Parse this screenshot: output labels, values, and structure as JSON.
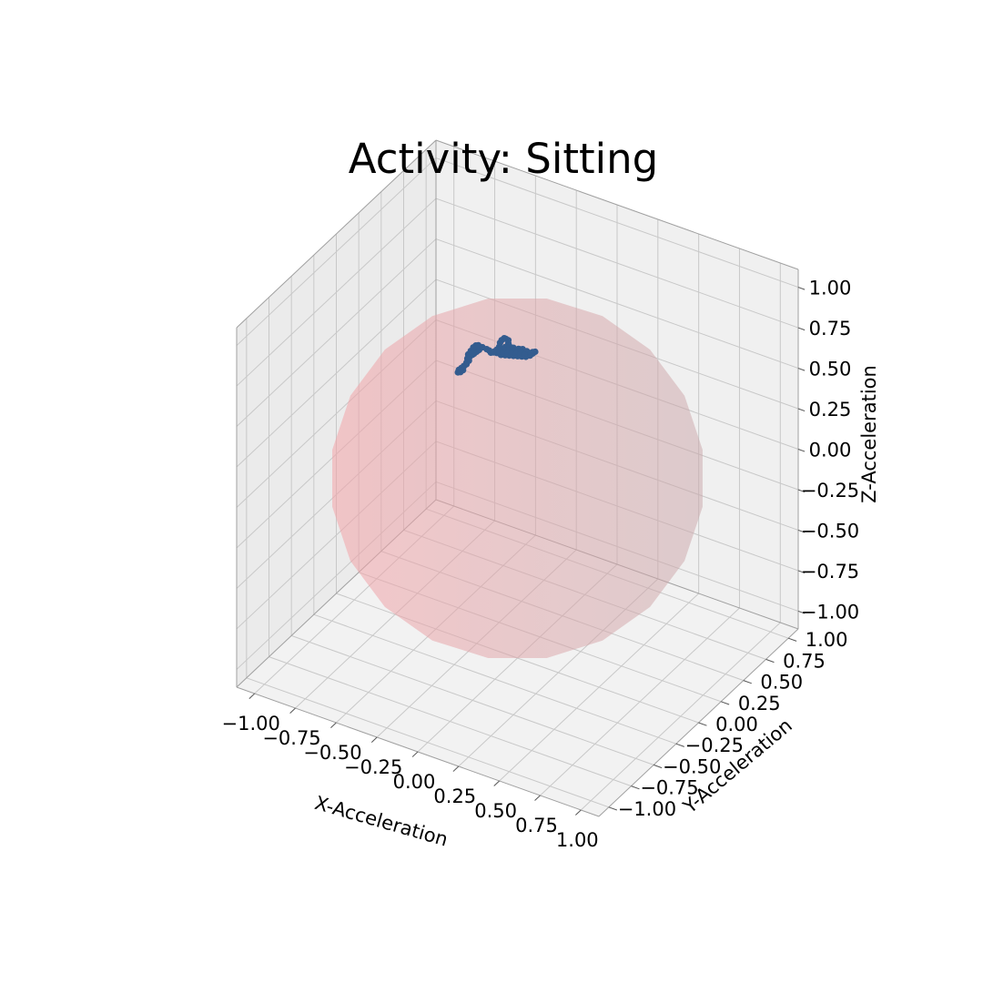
{
  "chart_data": {
    "type": "scatter",
    "title": "Activity: Sitting",
    "xlabel": "X-Acceleration",
    "ylabel": "Y-Acceleration",
    "zlabel": "Z-Acceleration",
    "xlim": [
      -1.0,
      1.0
    ],
    "ylim": [
      -1.0,
      1.0
    ],
    "zlim": [
      -1.0,
      1.0
    ],
    "ticks": [
      -1.0,
      -0.75,
      -0.5,
      -0.25,
      0.0,
      0.25,
      0.5,
      0.75,
      1.0
    ],
    "tick_labels": [
      "−1.00",
      "−0.75",
      "−0.50",
      "−0.25",
      "0.00",
      "0.25",
      "0.50",
      "0.75",
      "1.00"
    ],
    "grid": true,
    "reference_surface": {
      "shape": "unit sphere",
      "color": "#f4a3a8"
    },
    "series": [
      {
        "color": "#335c8f",
        "points": [
          [
            -0.18,
            -0.1,
            0.78
          ],
          [
            -0.19,
            -0.11,
            0.77
          ],
          [
            -0.2,
            -0.12,
            0.76
          ],
          [
            -0.21,
            -0.12,
            0.75
          ],
          [
            -0.22,
            -0.13,
            0.74
          ],
          [
            -0.22,
            -0.14,
            0.72
          ],
          [
            -0.23,
            -0.15,
            0.7
          ],
          [
            -0.24,
            -0.16,
            0.69
          ],
          [
            -0.25,
            -0.17,
            0.68
          ],
          [
            -0.26,
            -0.18,
            0.67
          ],
          [
            -0.26,
            -0.19,
            0.66
          ],
          [
            -0.25,
            -0.18,
            0.66
          ],
          [
            -0.24,
            -0.17,
            0.67
          ],
          [
            -0.24,
            -0.16,
            0.69
          ],
          [
            -0.23,
            -0.15,
            0.71
          ],
          [
            -0.23,
            -0.14,
            0.73
          ],
          [
            -0.23,
            -0.13,
            0.75
          ],
          [
            -0.22,
            -0.12,
            0.77
          ],
          [
            -0.21,
            -0.11,
            0.79
          ],
          [
            -0.2,
            -0.1,
            0.8
          ],
          [
            -0.19,
            -0.09,
            0.8
          ],
          [
            -0.17,
            -0.08,
            0.79
          ],
          [
            -0.15,
            -0.07,
            0.78
          ],
          [
            -0.14,
            -0.06,
            0.77
          ],
          [
            -0.13,
            -0.06,
            0.76
          ],
          [
            -0.12,
            -0.05,
            0.76
          ],
          [
            -0.11,
            -0.05,
            0.77
          ],
          [
            -0.1,
            -0.04,
            0.78
          ],
          [
            -0.09,
            -0.04,
            0.8
          ],
          [
            -0.09,
            -0.03,
            0.82
          ],
          [
            -0.08,
            -0.03,
            0.84
          ],
          [
            -0.07,
            -0.02,
            0.85
          ],
          [
            -0.06,
            -0.02,
            0.85
          ],
          [
            -0.05,
            -0.01,
            0.84
          ],
          [
            -0.05,
            -0.01,
            0.82
          ],
          [
            -0.05,
            0.0,
            0.8
          ],
          [
            -0.06,
            0.0,
            0.78
          ],
          [
            -0.06,
            0.01,
            0.76
          ],
          [
            -0.05,
            0.01,
            0.75
          ],
          [
            -0.04,
            0.01,
            0.75
          ],
          [
            -0.03,
            0.02,
            0.76
          ],
          [
            -0.02,
            0.02,
            0.77
          ],
          [
            -0.01,
            0.03,
            0.78
          ],
          [
            0.0,
            0.03,
            0.78
          ],
          [
            0.01,
            0.04,
            0.78
          ],
          [
            0.02,
            0.04,
            0.77
          ],
          [
            0.03,
            0.05,
            0.77
          ],
          [
            0.04,
            0.05,
            0.76
          ],
          [
            0.05,
            0.06,
            0.76
          ],
          [
            0.06,
            0.06,
            0.77
          ],
          [
            0.07,
            0.07,
            0.77
          ],
          [
            0.06,
            0.06,
            0.76
          ],
          [
            0.05,
            0.05,
            0.75
          ],
          [
            0.03,
            0.04,
            0.74
          ],
          [
            0.01,
            0.03,
            0.74
          ],
          [
            -0.01,
            0.02,
            0.74
          ],
          [
            -0.03,
            0.01,
            0.74
          ],
          [
            -0.05,
            0.0,
            0.74
          ],
          [
            -0.07,
            -0.01,
            0.74
          ],
          [
            -0.09,
            -0.02,
            0.74
          ],
          [
            -0.11,
            -0.03,
            0.75
          ],
          [
            -0.12,
            -0.04,
            0.76
          ],
          [
            -0.11,
            -0.03,
            0.77
          ],
          [
            -0.09,
            -0.02,
            0.78
          ],
          [
            -0.07,
            -0.01,
            0.79
          ],
          [
            -0.05,
            0.0,
            0.79
          ],
          [
            -0.03,
            0.01,
            0.79
          ],
          [
            -0.01,
            0.02,
            0.78
          ],
          [
            0.0,
            0.03,
            0.77
          ],
          [
            -0.02,
            0.02,
            0.76
          ],
          [
            -0.04,
            0.01,
            0.76
          ],
          [
            -0.06,
            0.0,
            0.77
          ],
          [
            -0.08,
            -0.01,
            0.77
          ],
          [
            -0.1,
            -0.02,
            0.76
          ],
          [
            -0.08,
            -0.01,
            0.75
          ],
          [
            -0.06,
            0.0,
            0.75
          ],
          [
            -0.04,
            0.01,
            0.75
          ],
          [
            -0.02,
            0.02,
            0.75
          ],
          [
            0.0,
            0.03,
            0.75
          ],
          [
            0.02,
            0.04,
            0.75
          ]
        ]
      }
    ]
  }
}
